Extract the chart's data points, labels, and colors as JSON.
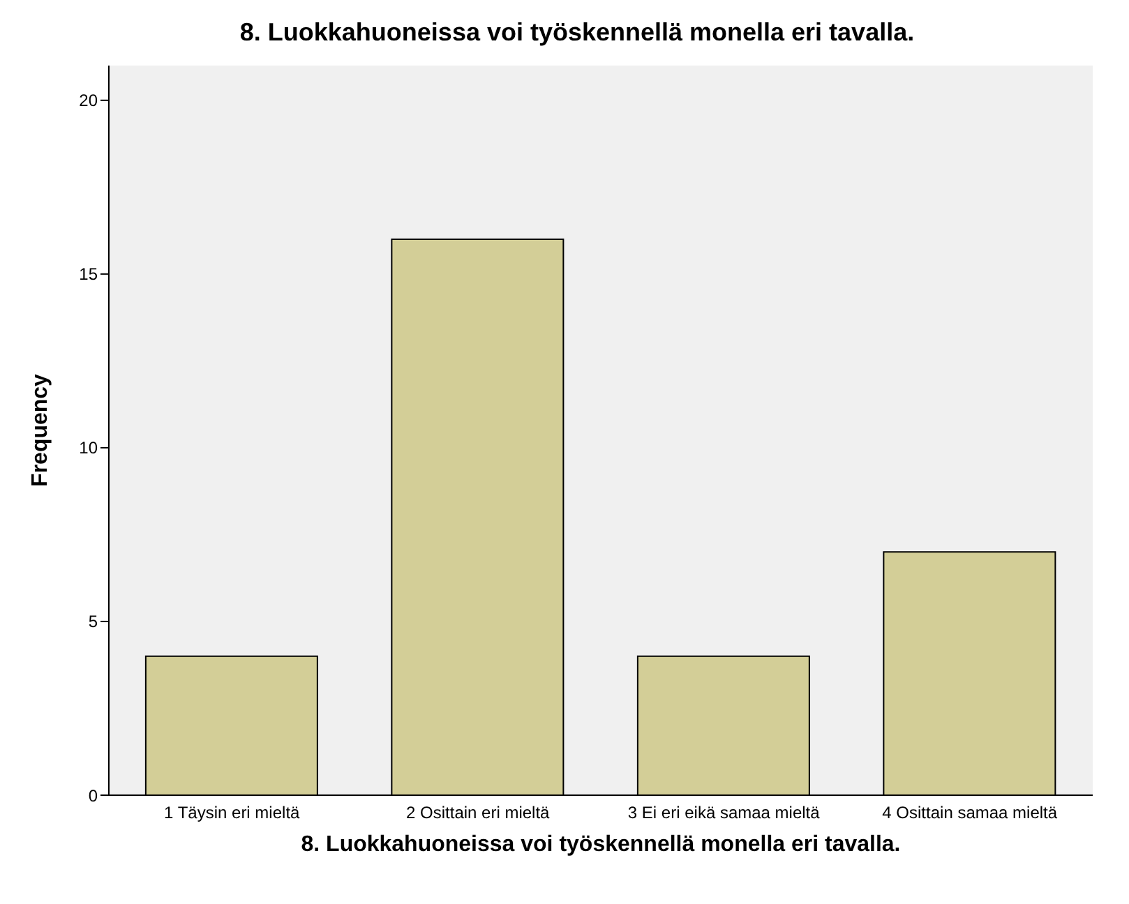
{
  "chart_data": {
    "type": "bar",
    "title": "8. Luokkahuoneissa voi työskennellä monella eri tavalla.",
    "xlabel": "8. Luokkahuoneissa voi työskennellä monella eri tavalla.",
    "ylabel": "Frequency",
    "categories": [
      "1 Täysin eri mieltä",
      "2 Osittain eri mieltä",
      "3 Ei eri eikä samaa mieltä",
      "4 Osittain samaa mieltä"
    ],
    "values": [
      4,
      16,
      4,
      7
    ],
    "color": "#d3ce97",
    "ylim": [
      0,
      21
    ],
    "yticks": [
      0,
      5,
      10,
      15,
      20
    ],
    "grid": false
  }
}
